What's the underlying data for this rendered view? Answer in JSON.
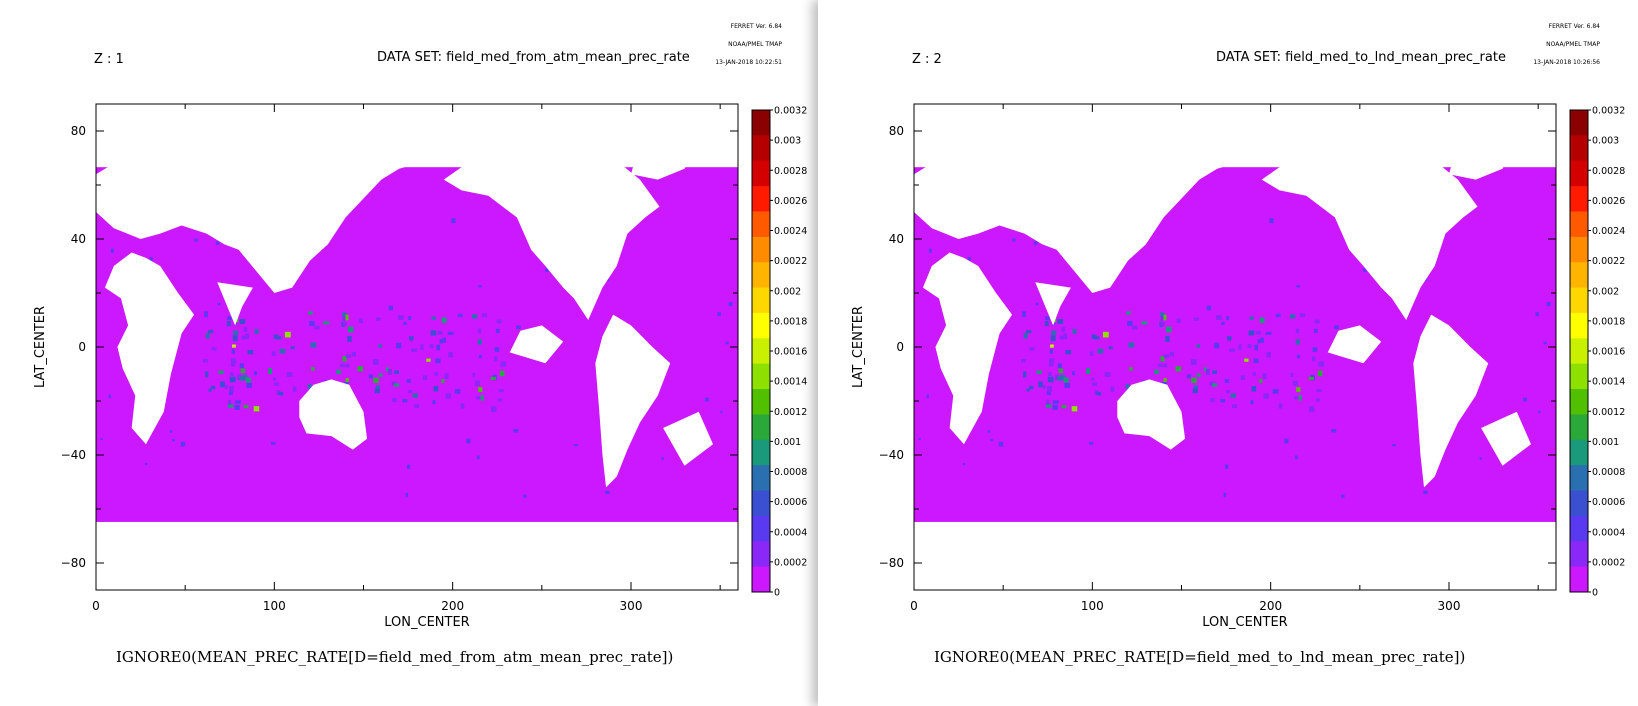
{
  "panels": [
    {
      "stamp": [
        "FERRET Ver. 6.84",
        "NOAA/PMEL TMAP",
        "13-JAN-2018 10:22:51"
      ],
      "z_label": "Z : 1",
      "dataset_label": "DATA SET: field_med_from_atm_mean_prec_rate",
      "caption": "IGNORE0(MEAN_PREC_RATE[D=field_med_from_atm_mean_prec_rate])"
    },
    {
      "stamp": [
        "FERRET Ver. 6.84",
        "NOAA/PMEL TMAP",
        "13-JAN-2018 10:26:56"
      ],
      "z_label": "Z : 2",
      "dataset_label": "DATA SET: field_med_to_lnd_mean_prec_rate",
      "caption": "IGNORE0(MEAN_PREC_RATE[D=field_med_to_lnd_mean_prec_rate])"
    }
  ],
  "chart_data": [
    {
      "type": "heatmap",
      "xlabel": "LON_CENTER",
      "ylabel": "LAT_CENTER",
      "xlim": [
        0,
        360
      ],
      "ylim": [
        -90,
        90
      ],
      "x_ticks": [
        0,
        100,
        200,
        300
      ],
      "x_tick_labels": [
        "0",
        "100",
        "200",
        "300"
      ],
      "y_ticks": [
        80,
        40,
        0,
        -40,
        -80
      ],
      "y_tick_labels": [
        "80",
        "40",
        "0",
        "−40",
        "−80"
      ],
      "colorbar": {
        "levels": [
          "0.0032",
          "0.003",
          "0.0028",
          "0.0026",
          "0.0024",
          "0.0022",
          "0.002",
          "0.0018",
          "0.0016",
          "0.0014",
          "0.0012",
          "0.001",
          "0.0008",
          "0.0006",
          "0.0004",
          "0.0002",
          "0"
        ],
        "colors": [
          "#8b0000",
          "#b50000",
          "#d40000",
          "#ff1a00",
          "#ff5a00",
          "#ff8c00",
          "#ffb400",
          "#ffd700",
          "#ffff00",
          "#c8f000",
          "#8ee000",
          "#50c000",
          "#2aa83a",
          "#1a9a7a",
          "#2a70b0",
          "#3a50d0",
          "#5a3af0",
          "#8a28f8",
          "#cc18ff"
        ],
        "placement": "right"
      },
      "grid": false
    },
    {
      "type": "heatmap",
      "xlabel": "LON_CENTER",
      "ylabel": "LAT_CENTER",
      "xlim": [
        0,
        360
      ],
      "ylim": [
        -90,
        90
      ],
      "x_ticks": [
        0,
        100,
        200,
        300
      ],
      "x_tick_labels": [
        "0",
        "100",
        "200",
        "300"
      ],
      "y_ticks": [
        80,
        40,
        0,
        -40,
        -80
      ],
      "y_tick_labels": [
        "80",
        "40",
        "0",
        "−40",
        "−80"
      ],
      "colorbar": {
        "levels": [
          "0.0032",
          "0.003",
          "0.0028",
          "0.0026",
          "0.0024",
          "0.0022",
          "0.002",
          "0.0018",
          "0.0016",
          "0.0014",
          "0.0012",
          "0.001",
          "0.0008",
          "0.0006",
          "0.0004",
          "0.0002",
          "0"
        ],
        "colors": [
          "#8b0000",
          "#b50000",
          "#d40000",
          "#ff1a00",
          "#ff5a00",
          "#ff8c00",
          "#ffb400",
          "#ffd700",
          "#ffff00",
          "#c8f000",
          "#8ee000",
          "#50c000",
          "#2aa83a",
          "#1a9a7a",
          "#2a70b0",
          "#3a50d0",
          "#5a3af0",
          "#8a28f8",
          "#cc18ff"
        ],
        "placement": "right"
      },
      "grid": false
    }
  ]
}
